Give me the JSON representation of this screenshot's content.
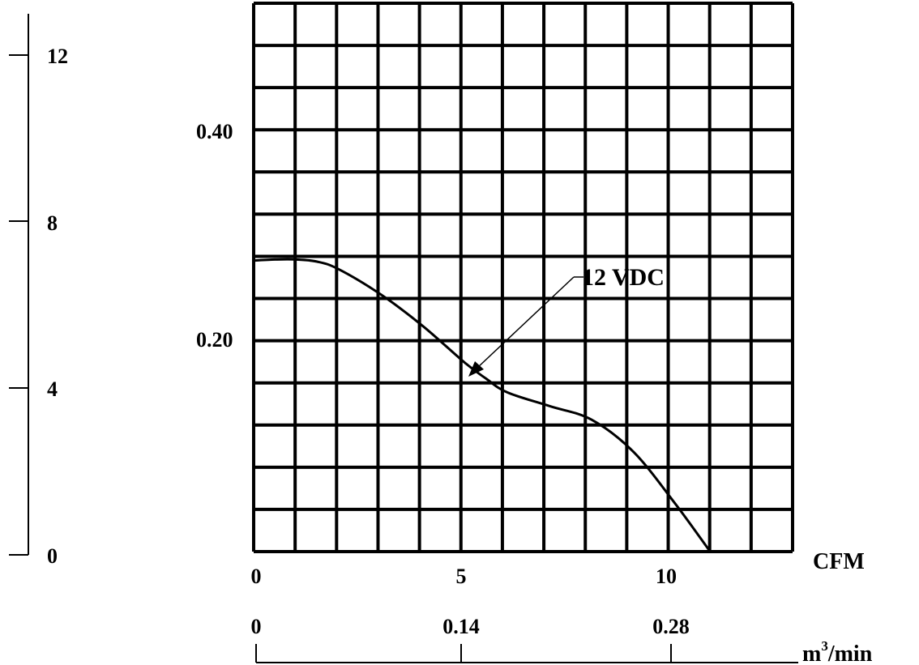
{
  "chart_data": {
    "type": "line",
    "title": "",
    "series": [
      {
        "name": "12 VDC",
        "x": [
          0,
          0.5,
          1.0,
          1.5,
          2.0,
          3.0,
          4.0,
          5.0,
          5.5,
          6.0,
          7.0,
          8.0,
          9.0,
          10.0,
          10.8
        ],
        "y": [
          0.276,
          0.277,
          0.277,
          0.275,
          0.268,
          0.244,
          0.214,
          0.179,
          0.164,
          0.151,
          0.138,
          0.125,
          0.094,
          0.044,
          0.0
        ]
      }
    ],
    "annotation": "12 VDC",
    "x_axis": {
      "label": "CFM",
      "ticks": [
        "0",
        "5",
        "10"
      ],
      "range": [
        0,
        12.75
      ]
    },
    "secondary_x_axis": {
      "label_main": "m",
      "label_sup": "3",
      "label_tail": "/min",
      "ticks": [
        "0",
        "0.14",
        "0.28"
      ]
    },
    "y_axis": {
      "ticks": [
        "0.20",
        "0.40"
      ],
      "range": [
        0,
        0.52
      ]
    },
    "secondary_y_axis": {
      "ticks": [
        "0",
        "4",
        "8",
        "12"
      ]
    },
    "grid": true
  }
}
